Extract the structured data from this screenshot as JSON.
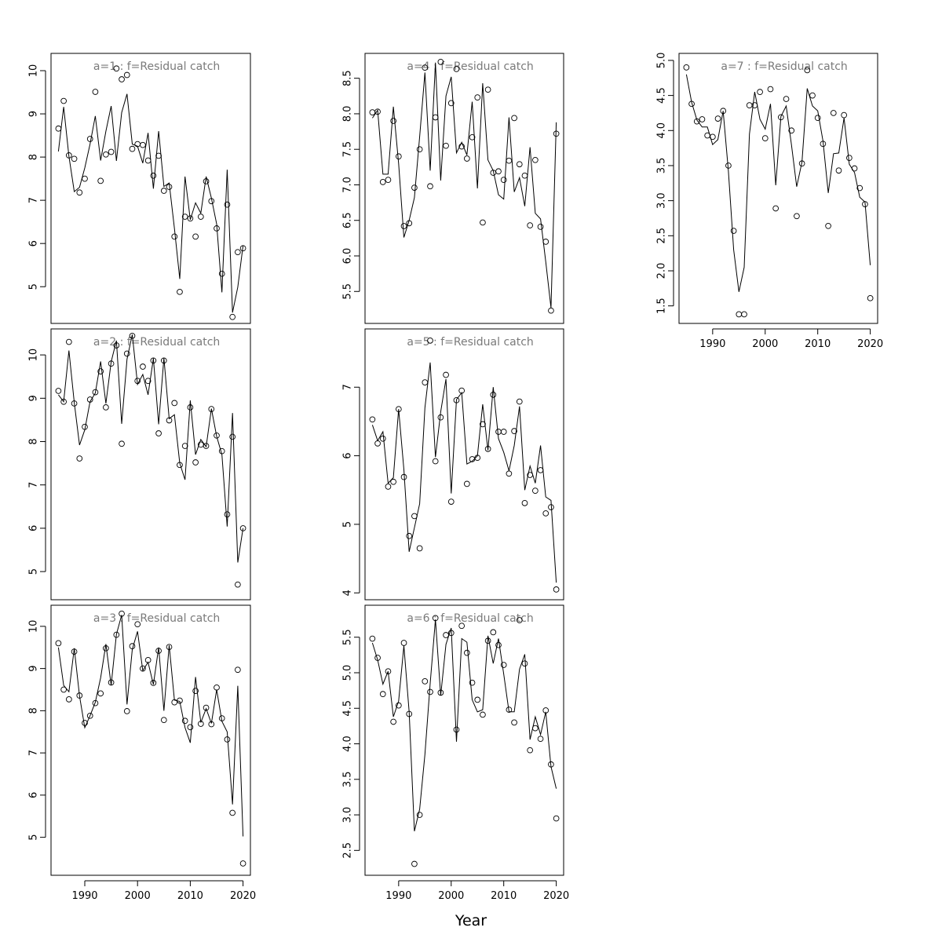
{
  "xlabel": "Year",
  "chart_data": [
    {
      "type": "line",
      "title": "a=1  :  f=Residual catch",
      "x": [
        1985,
        1986,
        1987,
        1988,
        1989,
        1990,
        1991,
        1992,
        1993,
        1994,
        1995,
        1996,
        1997,
        1998,
        1999,
        2000,
        2001,
        2002,
        2003,
        2004,
        2005,
        2006,
        2007,
        2008,
        2009,
        2010,
        2011,
        2012,
        2013,
        2014,
        2015,
        2016,
        2017,
        2018,
        2019,
        2020
      ],
      "xticks": [
        1990,
        2000,
        2010,
        2020
      ],
      "yticks": [
        5,
        6,
        7,
        8,
        9,
        10
      ],
      "ylim": [
        4.15,
        10.4
      ],
      "series": [
        {
          "type": "line",
          "values": [
            8.13,
            9.16,
            8.02,
            7.2,
            7.3,
            7.75,
            8.3,
            8.95,
            7.92,
            8.6,
            9.18,
            7.91,
            9.03,
            9.46,
            8.3,
            8.25,
            7.86,
            8.56,
            7.27,
            8.6,
            7.32,
            7.4,
            6.35,
            5.18,
            7.55,
            6.55,
            6.94,
            6.7,
            7.55,
            7.05,
            6.45,
            4.87,
            7.71,
            4.4,
            4.99,
            5.95
          ]
        },
        {
          "type": "scatter",
          "values": [
            8.66,
            9.3,
            8.04,
            7.96,
            7.18,
            7.5,
            8.42,
            9.51,
            7.45,
            8.06,
            8.12,
            10.05,
            9.8,
            9.9,
            8.19,
            8.3,
            8.28,
            7.92,
            7.57,
            8.03,
            7.22,
            7.31,
            6.16,
            4.88,
            6.62,
            6.58,
            6.16,
            6.62,
            7.44,
            6.98,
            6.35,
            5.3,
            6.9,
            4.3,
            5.8,
            5.89
          ]
        }
      ]
    },
    {
      "type": "line",
      "title": "a=2  :  f=Residual catch",
      "x": [
        1985,
        1986,
        1987,
        1988,
        1989,
        1990,
        1991,
        1992,
        1993,
        1994,
        1995,
        1996,
        1997,
        1998,
        1999,
        2000,
        2001,
        2002,
        2003,
        2004,
        2005,
        2006,
        2007,
        2008,
        2009,
        2010,
        2011,
        2012,
        2013,
        2014,
        2015,
        2016,
        2017,
        2018,
        2019,
        2020
      ],
      "xticks": [
        1990,
        2000,
        2010,
        2020
      ],
      "yticks": [
        5,
        6,
        7,
        8,
        9,
        10
      ],
      "ylim": [
        4.35,
        10.6
      ],
      "series": [
        {
          "type": "line",
          "values": [
            9.08,
            8.92,
            10.1,
            8.9,
            7.92,
            8.27,
            8.92,
            9.12,
            9.85,
            8.88,
            9.84,
            10.33,
            8.41,
            9.9,
            10.47,
            9.32,
            9.55,
            9.08,
            9.92,
            8.4,
            9.93,
            8.53,
            8.62,
            7.5,
            7.12,
            8.95,
            7.7,
            8.05,
            7.88,
            8.76,
            8.12,
            7.7,
            6.04,
            8.66,
            5.21,
            6.0
          ]
        },
        {
          "type": "scatter",
          "values": [
            9.17,
            8.92,
            10.3,
            8.88,
            7.61,
            8.34,
            8.97,
            9.14,
            9.62,
            8.79,
            9.8,
            10.22,
            7.95,
            10.03,
            10.44,
            9.4,
            9.73,
            9.4,
            9.87,
            8.19,
            9.87,
            8.49,
            8.89,
            7.46,
            7.9,
            8.79,
            7.52,
            7.93,
            7.9,
            8.75,
            8.14,
            7.78,
            6.32,
            8.11,
            4.7,
            6.0
          ]
        }
      ]
    },
    {
      "type": "line",
      "title": "a=3  :  f=Residual catch",
      "x": [
        1985,
        1986,
        1987,
        1988,
        1989,
        1990,
        1991,
        1992,
        1993,
        1994,
        1995,
        1996,
        1997,
        1998,
        1999,
        2000,
        2001,
        2002,
        2003,
        2004,
        2005,
        2006,
        2007,
        2008,
        2009,
        2010,
        2011,
        2012,
        2013,
        2014,
        2015,
        2016,
        2017,
        2018,
        2019,
        2020
      ],
      "xticks": [
        1990,
        2000,
        2010,
        2020
      ],
      "yticks": [
        5,
        6,
        7,
        8,
        9,
        10
      ],
      "ylim": [
        4.1,
        10.5
      ],
      "series": [
        {
          "type": "line",
          "values": [
            9.5,
            8.6,
            8.45,
            9.48,
            8.35,
            7.6,
            7.88,
            8.2,
            8.78,
            9.58,
            8.6,
            9.81,
            10.27,
            8.15,
            9.45,
            9.88,
            8.95,
            9.15,
            8.62,
            9.5,
            8.0,
            9.55,
            8.25,
            8.22,
            7.6,
            7.24,
            8.8,
            7.72,
            8.05,
            7.7,
            8.5,
            7.75,
            7.5,
            5.78,
            8.59,
            5.02
          ]
        },
        {
          "type": "scatter",
          "values": [
            9.6,
            8.5,
            8.27,
            9.4,
            8.36,
            7.71,
            7.88,
            8.18,
            8.41,
            9.48,
            8.67,
            9.8,
            10.3,
            7.99,
            9.53,
            10.05,
            9.0,
            9.2,
            8.66,
            9.42,
            7.78,
            9.51,
            8.2,
            8.24,
            7.76,
            7.61,
            8.47,
            7.69,
            8.07,
            7.68,
            8.55,
            7.82,
            7.32,
            5.58,
            8.97,
            4.38
          ]
        }
      ]
    },
    {
      "type": "line",
      "title": "a=4  :  f=Residual catch",
      "x": [
        1985,
        1986,
        1987,
        1988,
        1989,
        1990,
        1991,
        1992,
        1993,
        1994,
        1995,
        1996,
        1997,
        1998,
        1999,
        2000,
        2001,
        2002,
        2003,
        2004,
        2005,
        2006,
        2007,
        2008,
        2009,
        2010,
        2011,
        2012,
        2013,
        2014,
        2015,
        2016,
        2017,
        2018,
        2019,
        2020
      ],
      "xticks": [
        1990,
        2000,
        2010,
        2020
      ],
      "yticks": [
        5.5,
        6.0,
        6.5,
        7.0,
        7.5,
        8.0,
        8.5
      ],
      "ylim": [
        5.05,
        8.85
      ],
      "series": [
        {
          "type": "line",
          "values": [
            7.94,
            8.05,
            7.15,
            7.15,
            8.1,
            7.3,
            6.26,
            6.5,
            6.82,
            7.68,
            8.58,
            7.2,
            8.72,
            7.06,
            8.25,
            8.52,
            7.45,
            7.6,
            7.42,
            8.17,
            6.95,
            8.43,
            7.35,
            7.2,
            6.86,
            6.8,
            7.95,
            6.9,
            7.1,
            6.7,
            7.53,
            6.6,
            6.52,
            5.92,
            5.27,
            7.88
          ]
        },
        {
          "type": "scatter",
          "values": [
            8.02,
            8.03,
            7.04,
            7.07,
            7.9,
            7.4,
            6.42,
            6.46,
            6.96,
            7.5,
            8.65,
            6.98,
            7.95,
            8.73,
            7.55,
            8.15,
            8.63,
            7.54,
            7.37,
            7.67,
            8.23,
            6.47,
            8.34,
            7.17,
            7.19,
            7.07,
            7.34,
            7.94,
            7.29,
            7.13,
            6.43,
            7.35,
            6.41,
            6.2,
            5.23,
            7.72
          ]
        }
      ]
    },
    {
      "type": "line",
      "title": "a=5  :  f=Residual catch",
      "x": [
        1985,
        1986,
        1987,
        1988,
        1989,
        1990,
        1991,
        1992,
        1993,
        1994,
        1995,
        1996,
        1997,
        1998,
        1999,
        2000,
        2001,
        2002,
        2003,
        2004,
        2005,
        2006,
        2007,
        2008,
        2009,
        2010,
        2011,
        2012,
        2013,
        2014,
        2015,
        2016,
        2017,
        2018,
        2019,
        2020
      ],
      "xticks": [
        1990,
        2000,
        2010,
        2020
      ],
      "yticks": [
        4,
        5,
        6,
        7
      ],
      "ylim": [
        3.9,
        7.85
      ],
      "series": [
        {
          "type": "line",
          "values": [
            6.45,
            6.22,
            6.35,
            5.6,
            5.68,
            6.68,
            5.8,
            4.6,
            4.95,
            5.3,
            6.7,
            7.36,
            5.98,
            6.64,
            7.12,
            5.45,
            6.82,
            6.92,
            5.88,
            5.92,
            6.0,
            6.75,
            6.08,
            7.0,
            6.25,
            6.05,
            5.78,
            6.15,
            6.72,
            5.5,
            5.85,
            5.6,
            6.15,
            5.4,
            5.35,
            4.15
          ]
        },
        {
          "type": "scatter",
          "values": [
            6.53,
            6.18,
            6.25,
            5.55,
            5.62,
            6.68,
            5.69,
            4.83,
            5.12,
            4.65,
            7.07,
            7.68,
            5.92,
            6.56,
            7.18,
            5.33,
            6.81,
            6.95,
            5.59,
            5.95,
            5.97,
            6.46,
            6.1,
            6.89,
            6.35,
            6.35,
            5.74,
            6.36,
            6.79,
            5.31,
            5.72,
            5.49,
            5.79,
            5.16,
            5.25,
            4.05
          ]
        }
      ]
    },
    {
      "type": "line",
      "title": "a=6  :  f=Residual catch",
      "x": [
        1985,
        1986,
        1987,
        1988,
        1989,
        1990,
        1991,
        1992,
        1993,
        1994,
        1995,
        1996,
        1997,
        1998,
        1999,
        2000,
        2001,
        2002,
        2003,
        2004,
        2005,
        2006,
        2007,
        2008,
        2009,
        2010,
        2011,
        2012,
        2013,
        2014,
        2015,
        2016,
        2017,
        2018,
        2019,
        2020
      ],
      "xticks": [
        1990,
        2000,
        2010,
        2020
      ],
      "yticks": [
        2.5,
        3.0,
        3.5,
        4.0,
        4.5,
        5.0,
        5.5
      ],
      "ylim": [
        2.15,
        5.95
      ],
      "series": [
        {
          "type": "line",
          "values": [
            5.42,
            5.18,
            4.84,
            5.02,
            4.38,
            4.6,
            5.38,
            4.45,
            2.77,
            3.08,
            3.85,
            4.85,
            5.75,
            4.68,
            5.4,
            5.63,
            4.03,
            5.48,
            5.43,
            4.62,
            4.45,
            4.48,
            5.52,
            5.13,
            5.48,
            4.98,
            4.45,
            4.45,
            5.05,
            5.26,
            4.06,
            4.38,
            4.13,
            4.45,
            3.68,
            3.37
          ]
        },
        {
          "type": "scatter",
          "values": [
            5.48,
            5.21,
            4.7,
            5.02,
            4.31,
            4.54,
            5.42,
            4.42,
            2.31,
            3.0,
            4.88,
            4.73,
            5.77,
            4.72,
            5.53,
            5.56,
            4.2,
            5.66,
            5.28,
            4.86,
            4.62,
            4.41,
            5.45,
            5.57,
            5.39,
            5.11,
            4.48,
            4.3,
            5.74,
            5.13,
            3.91,
            4.22,
            4.07,
            4.47,
            3.71,
            2.95
          ]
        }
      ]
    },
    {
      "type": "line",
      "title": "a=7  :  f=Residual catch",
      "x": [
        1985,
        1986,
        1987,
        1988,
        1989,
        1990,
        1991,
        1992,
        1993,
        1994,
        1995,
        1996,
        1997,
        1998,
        1999,
        2000,
        2001,
        2002,
        2003,
        2004,
        2005,
        2006,
        2007,
        2008,
        2009,
        2010,
        2011,
        2012,
        2013,
        2014,
        2015,
        2016,
        2017,
        2018,
        2019,
        2020
      ],
      "xticks": [
        1990,
        2000,
        2010,
        2020
      ],
      "yticks": [
        1.5,
        2.0,
        2.5,
        3.0,
        3.5,
        4.0,
        4.5,
        5.0
      ],
      "ylim": [
        1.25,
        5.1
      ],
      "series": [
        {
          "type": "line",
          "values": [
            4.8,
            4.4,
            4.15,
            4.05,
            4.05,
            3.8,
            3.87,
            4.28,
            3.42,
            2.3,
            1.7,
            2.05,
            3.95,
            4.55,
            4.16,
            4.02,
            4.38,
            3.22,
            4.2,
            4.35,
            3.8,
            3.2,
            3.55,
            4.6,
            4.35,
            4.28,
            3.85,
            3.11,
            3.67,
            3.68,
            4.18,
            3.52,
            3.4,
            3.05,
            2.98,
            2.08
          ]
        },
        {
          "type": "scatter",
          "values": [
            4.9,
            4.38,
            4.13,
            4.16,
            3.93,
            3.91,
            4.17,
            4.28,
            3.5,
            2.57,
            1.38,
            1.38,
            4.36,
            4.36,
            4.55,
            3.89,
            4.59,
            2.89,
            4.19,
            4.45,
            4.0,
            2.78,
            3.53,
            4.86,
            4.5,
            4.18,
            3.81,
            2.64,
            4.25,
            3.43,
            4.22,
            3.61,
            3.46,
            3.18,
            2.95,
            1.61
          ]
        }
      ]
    }
  ]
}
